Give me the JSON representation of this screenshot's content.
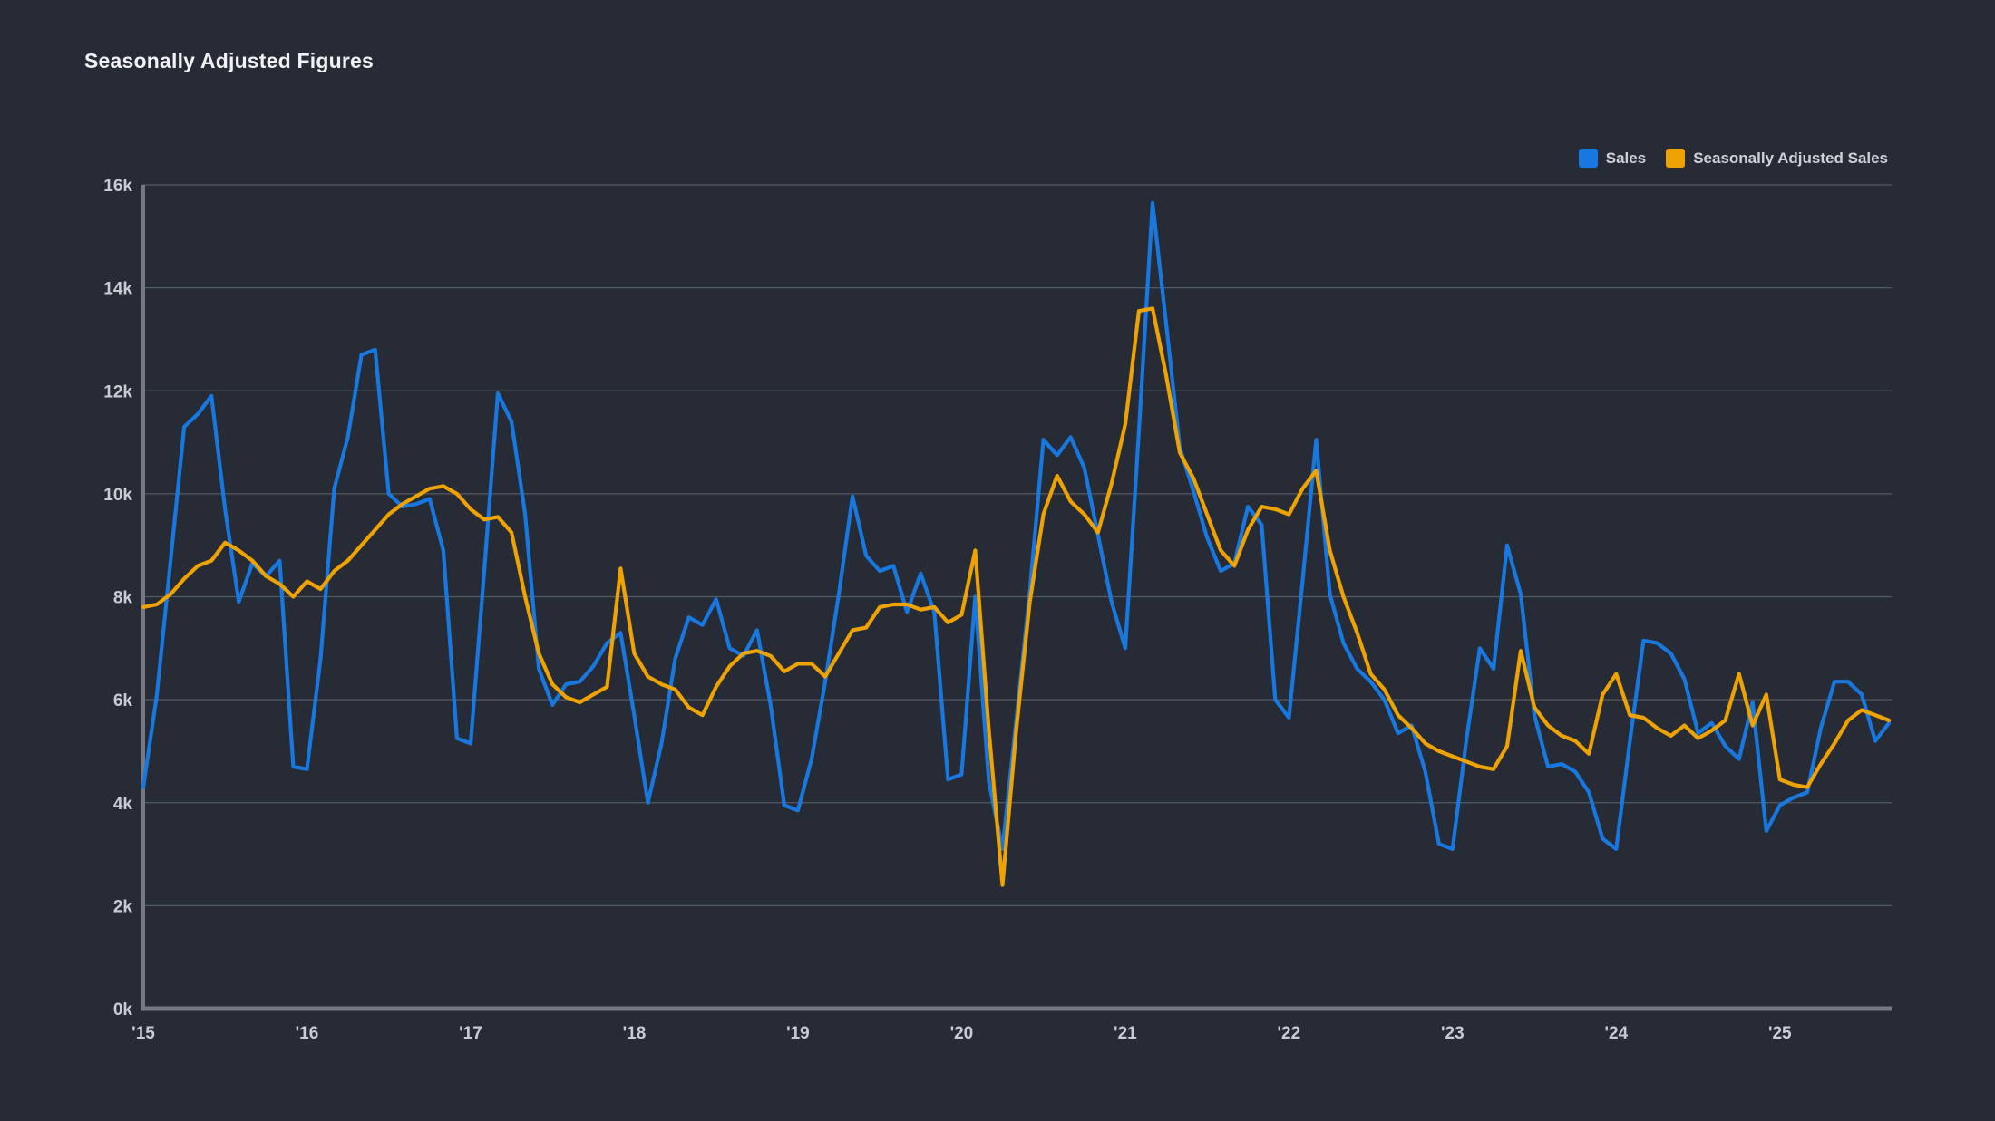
{
  "title": "Seasonally Adjusted Figures",
  "legend": {
    "items": [
      {
        "label": "Sales",
        "color": "#1878df"
      },
      {
        "label": "Seasonally Adjusted Sales",
        "color": "#efa302"
      }
    ]
  },
  "colors": {
    "background": "#272b35",
    "gridline": "#555b64",
    "axis_line": "#757a82",
    "tick_label": "#c8ccd3",
    "title_text": "#f1f2f4",
    "legend_text": "#ced2d8",
    "sales_line": "#1878df",
    "adjusted_line": "#efa302"
  },
  "chart_data": {
    "type": "line",
    "x_start": "2015-01",
    "x_frequency": "monthly",
    "x_tick_labels": [
      "'15",
      "'16",
      "'17",
      "'18",
      "'19",
      "'20",
      "'21",
      "'22",
      "'23",
      "'24",
      "'25"
    ],
    "y_tick_labels": [
      "0k",
      "2k",
      "4k",
      "6k",
      "8k",
      "10k",
      "12k",
      "14k",
      "16k"
    ],
    "ylim": [
      0,
      16000
    ],
    "grid": true,
    "legend_position": "top-right",
    "series": [
      {
        "name": "Sales",
        "color": "#1878df",
        "values": [
          4300,
          6100,
          8700,
          11300,
          11550,
          11900,
          9700,
          7900,
          8650,
          8400,
          8700,
          4700,
          4650,
          6800,
          10100,
          11100,
          12700,
          12800,
          10000,
          9750,
          9800,
          9900,
          8900,
          5250,
          5150,
          8500,
          11950,
          11400,
          9600,
          6600,
          5900,
          6300,
          6350,
          6650,
          7100,
          7300,
          5700,
          4000,
          5150,
          6800,
          7600,
          7450,
          7950,
          7000,
          6850,
          7350,
          5900,
          3950,
          3850,
          4850,
          6350,
          8050,
          9950,
          8800,
          8500,
          8600,
          7700,
          8450,
          7700,
          4450,
          4550,
          8000,
          4400,
          3100,
          5600,
          8100,
          11050,
          10750,
          11100,
          10500,
          9200,
          7900,
          7000,
          11200,
          15650,
          13300,
          10900,
          10050,
          9150,
          8500,
          8650,
          9750,
          9400,
          6000,
          5650,
          8300,
          11050,
          8050,
          7100,
          6600,
          6350,
          6000,
          5350,
          5500,
          4600,
          3200,
          3100,
          5200,
          7000,
          6600,
          9000,
          8050,
          5700,
          4700,
          4750,
          4600,
          4200,
          3300,
          3100,
          5200,
          7150,
          7100,
          6900,
          6400,
          5350,
          5550,
          5100,
          4850,
          5950,
          3450,
          3950,
          4100,
          4200,
          5450,
          6350,
          6350,
          6100,
          5200,
          5550
        ]
      },
      {
        "name": "Seasonally Adjusted Sales",
        "color": "#efa302",
        "values": [
          7800,
          7850,
          8050,
          8350,
          8600,
          8700,
          9050,
          8900,
          8700,
          8400,
          8250,
          8000,
          8300,
          8150,
          8500,
          8700,
          9000,
          9300,
          9600,
          9800,
          9950,
          10100,
          10150,
          10000,
          9700,
          9500,
          9550,
          9250,
          8000,
          6900,
          6300,
          6050,
          5950,
          6100,
          6250,
          8550,
          6900,
          6450,
          6300,
          6200,
          5850,
          5700,
          6250,
          6650,
          6900,
          6950,
          6850,
          6550,
          6700,
          6700,
          6450,
          6900,
          7350,
          7400,
          7800,
          7850,
          7850,
          7750,
          7800,
          7500,
          7650,
          8900,
          5400,
          2400,
          5400,
          7900,
          9600,
          10350,
          9850,
          9600,
          9250,
          10200,
          11350,
          13550,
          13600,
          12300,
          10800,
          10300,
          9600,
          8900,
          8600,
          9300,
          9750,
          9700,
          9600,
          10100,
          10450,
          8900,
          8000,
          7300,
          6500,
          6200,
          5700,
          5450,
          5150,
          5000,
          4900,
          4800,
          4700,
          4650,
          5100,
          6950,
          5850,
          5500,
          5300,
          5200,
          4950,
          6100,
          6500,
          5700,
          5650,
          5450,
          5300,
          5500,
          5250,
          5400,
          5600,
          6500,
          5500,
          6100,
          4450,
          4350,
          4300,
          4750,
          5150,
          5600,
          5800,
          5700,
          5600
        ]
      }
    ]
  }
}
